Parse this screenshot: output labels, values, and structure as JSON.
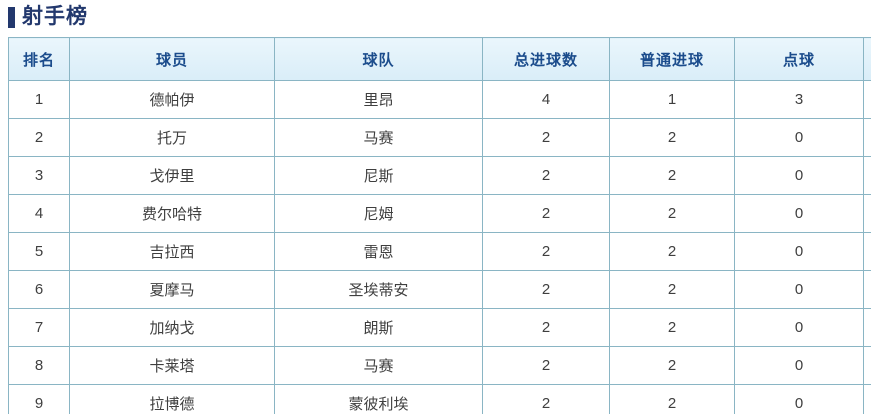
{
  "page": {
    "title": "射手榜"
  },
  "table": {
    "headers": [
      "排名",
      "球员",
      "球队",
      "总进球数",
      "普通进球",
      "点球"
    ],
    "rows": [
      [
        "1",
        "德帕伊",
        "里昂",
        "4",
        "1",
        "3"
      ],
      [
        "2",
        "托万",
        "马赛",
        "2",
        "2",
        "0"
      ],
      [
        "3",
        "戈伊里",
        "尼斯",
        "2",
        "2",
        "0"
      ],
      [
        "4",
        "费尔哈特",
        "尼姆",
        "2",
        "2",
        "0"
      ],
      [
        "5",
        "吉拉西",
        "雷恩",
        "2",
        "2",
        "0"
      ],
      [
        "6",
        "夏摩马",
        "圣埃蒂安",
        "2",
        "2",
        "0"
      ],
      [
        "7",
        "加纳戈",
        "朗斯",
        "2",
        "2",
        "0"
      ],
      [
        "8",
        "卡莱塔",
        "马赛",
        "2",
        "2",
        "0"
      ],
      [
        "9",
        "拉博德",
        "蒙彼利埃",
        "2",
        "2",
        "0"
      ]
    ]
  },
  "colors": {
    "title": "#22386d",
    "header_text": "#1b4c8c",
    "header_bg": "#d9edf8",
    "border": "#8ab5c4",
    "body_text": "#3f3f3f"
  }
}
